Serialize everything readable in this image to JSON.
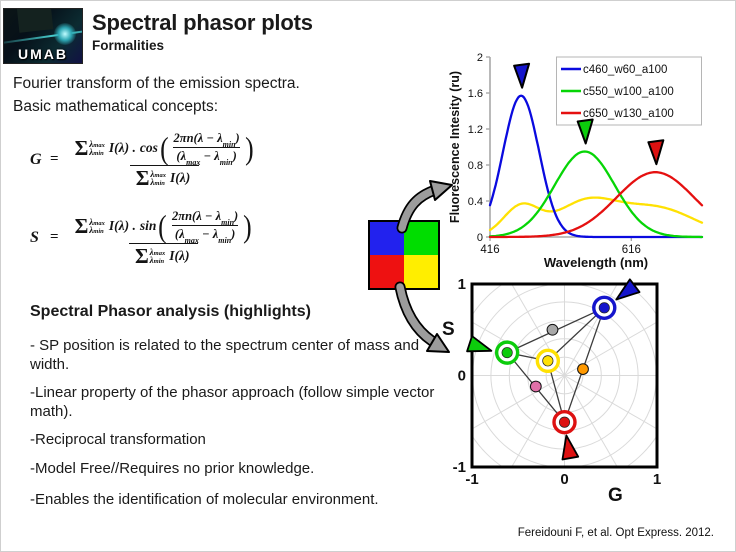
{
  "slide": {
    "title": "Spectral phasor plots",
    "subtitle": "Formalities",
    "logo_text": "UMAB",
    "citation": "Fereidouni F,  et al. Opt Express. 2012."
  },
  "intro": {
    "line1": "Fourier transform of the emission spectra.",
    "line2": "Basic mathematical concepts:"
  },
  "formulas": {
    "G": {
      "lhs": "G",
      "trig": "cos"
    },
    "S": {
      "lhs": "S",
      "trig": "sin"
    },
    "shared": {
      "eq": "=",
      "sum": "Σ",
      "lambda": "λ",
      "max": "max",
      "min": "min",
      "i_term": "I(λ) .",
      "paren_open": "(",
      "paren_close": ")",
      "inner_num_a": "2πn(λ − λ",
      "inner_num_sub": "min",
      "inner_num_b": ")",
      "inner_den_a": "(λ",
      "inner_den_sub_max": "max",
      "inner_den_b": " − λ",
      "inner_den_sub_min": "min",
      "inner_den_c": ")",
      "i_den": "I(λ)"
    }
  },
  "highlights": {
    "heading": "Spectral Phasor analysis (highlights)",
    "bullets": [
      "- SP position is related to the spectrum center of mass and width.",
      "-Linear property of the phasor approach (follow simple vector math).",
      "-Reciprocal transformation",
      "-Model Free//Requires no prior knowledge.",
      "-Enables the identification of molecular environment."
    ]
  },
  "mixture_square": {
    "quadrants": [
      {
        "name": "blue",
        "color": "#2222ee"
      },
      {
        "name": "green",
        "color": "#00dd00"
      },
      {
        "name": "red",
        "color": "#ee1111"
      },
      {
        "name": "yellow",
        "color": "#ffee00"
      }
    ]
  },
  "chart_data": [
    {
      "id": "emission-spectra",
      "type": "line",
      "xlabel": "Wavelength (nm)",
      "ylabel": "Fluorescence Intesity (ru)",
      "xlim": [
        416,
        716
      ],
      "x_ticks": [
        "416",
        "616"
      ],
      "ylim": [
        0,
        2
      ],
      "y_ticks": [
        "0",
        "0.4",
        "0.8",
        "1.2",
        "1.6",
        "2"
      ],
      "legend_position": "top-right",
      "series": [
        {
          "name": "c460_w60_a100",
          "color": "#0a0adf",
          "shape": "gaussian",
          "center_nm": 460,
          "fwhm_nm": 60,
          "peak_ru": 1.57,
          "in_legend": true
        },
        {
          "name": "c550_w100_a100",
          "color": "#06d506",
          "shape": "gaussian",
          "center_nm": 550,
          "fwhm_nm": 100,
          "peak_ru": 0.95,
          "in_legend": true
        },
        {
          "name": "c650_w130_a100",
          "color": "#e51010",
          "shape": "gaussian",
          "center_nm": 650,
          "fwhm_nm": 130,
          "peak_ru": 0.72,
          "in_legend": true
        },
        {
          "name": "mixture",
          "color": "#ffe103",
          "shape": "mixture",
          "weights": [
            0.21,
            0.38,
            0.45
          ],
          "in_legend": false
        }
      ],
      "peak_markers": [
        {
          "series": "c460_w60_a100",
          "color": "#1515cc",
          "center_nm": 460,
          "peak_ru": 1.57
        },
        {
          "series": "c550_w100_a100",
          "color": "#0ccc0c",
          "center_nm": 550,
          "peak_ru": 0.95
        },
        {
          "series": "c650_w130_a100",
          "color": "#dd1111",
          "center_nm": 650,
          "peak_ru": 0.72
        }
      ]
    },
    {
      "id": "phasor-plot",
      "type": "scatter",
      "xlabel": "G",
      "ylabel": "S",
      "xlim": [
        -1,
        1
      ],
      "ylim": [
        -1,
        1
      ],
      "x_ticks": [
        "-1",
        "0",
        "1"
      ],
      "y_ticks": [
        "1",
        "0",
        "-1"
      ],
      "grid": "polar",
      "points": [
        {
          "name": "c460 phasor",
          "g": 0.43,
          "s": 0.74,
          "color": "#1515cc",
          "ringed": true
        },
        {
          "name": "c550 phasor",
          "g": -0.62,
          "s": 0.25,
          "color": "#0ccc0c",
          "ringed": true
        },
        {
          "name": "c650 phasor",
          "g": 0.0,
          "s": -0.51,
          "color": "#dd1111",
          "ringed": true
        },
        {
          "name": "mixture phasor",
          "g": -0.18,
          "s": 0.16,
          "color": "#ffe103",
          "ringed": true
        },
        {
          "name": "blue-green midpoint",
          "g": -0.13,
          "s": 0.5,
          "color": "#a8a8a8",
          "ringed": false
        },
        {
          "name": "blue-red midpoint",
          "g": 0.2,
          "s": 0.07,
          "color": "#ff9900",
          "ringed": false
        },
        {
          "name": "green-red midpoint",
          "g": -0.31,
          "s": -0.12,
          "color": "#e070a8",
          "ringed": false
        }
      ],
      "lines": [
        [
          0,
          1
        ],
        [
          0,
          2
        ],
        [
          1,
          2
        ],
        [
          3,
          0
        ],
        [
          3,
          1
        ],
        [
          3,
          2
        ]
      ],
      "arrows": [
        {
          "name": "blue arrow",
          "color": "#1515cc",
          "tip_g": 0.56,
          "tip_s": 0.83,
          "angle_deg": 217
        },
        {
          "name": "green arrow",
          "color": "#0ccc0c",
          "tip_g": -0.79,
          "tip_s": 0.27,
          "angle_deg": -18
        },
        {
          "name": "red arrow",
          "color": "#dd1111",
          "tip_g": 0.02,
          "tip_s": -0.655,
          "angle_deg": 100
        }
      ]
    }
  ]
}
